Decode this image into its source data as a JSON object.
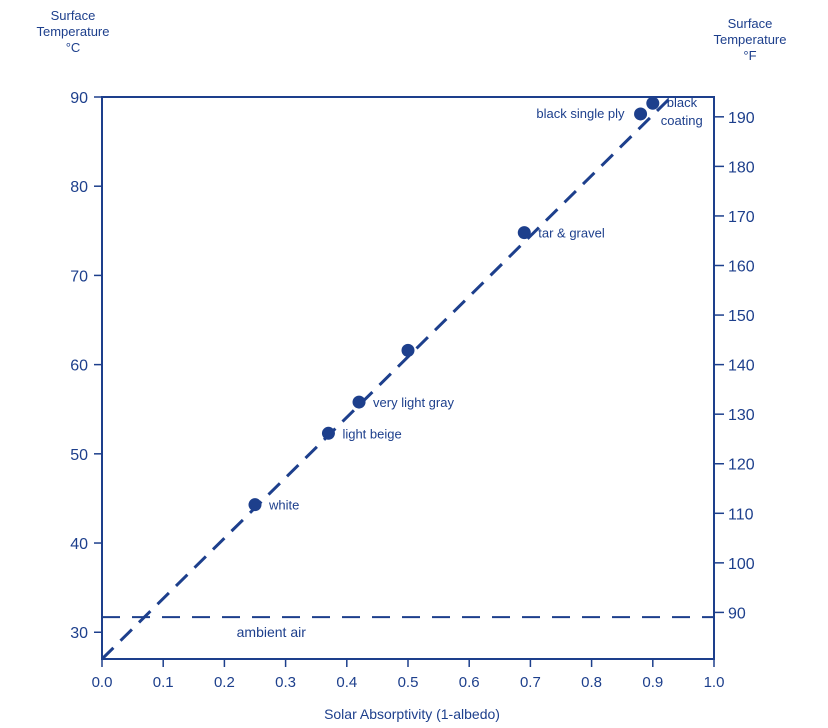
{
  "colors": {
    "ink": "#1d3f8c"
  },
  "left_axis_title": {
    "line1": "Surface",
    "line2": "Temperature",
    "line3": "°C"
  },
  "right_axis_title": {
    "line1": "Surface",
    "line2": "Temperature",
    "line3": "°F"
  },
  "chart_data": {
    "type": "scatter",
    "title": "",
    "xlabel": "Solar Absorptivity (1-albedo)",
    "ylabel": "Surface Temperature °C",
    "ylabel_right": "Surface Temperature °F",
    "xlim": [
      0.0,
      1.0
    ],
    "ylim": [
      27.0,
      90.0
    ],
    "ylim_right": [
      80.6,
      194.0
    ],
    "x_ticks": [
      "0.0",
      "0.1",
      "0.2",
      "0.3",
      "0.4",
      "0.5",
      "0.6",
      "0.7",
      "0.8",
      "0.9",
      "1.0"
    ],
    "y_ticks": [
      "30",
      "40",
      "50",
      "60",
      "70",
      "80",
      "90"
    ],
    "y_ticks_right": [
      "90",
      "100",
      "110",
      "120",
      "130",
      "140",
      "150",
      "160",
      "170",
      "180",
      "190"
    ],
    "grid": false,
    "series": [
      {
        "points": [
          {
            "x": 0.25,
            "y": 44.3,
            "label": "white"
          },
          {
            "x": 0.37,
            "y": 52.3,
            "label": "light beige"
          },
          {
            "x": 0.42,
            "y": 55.8,
            "label": "very light gray"
          },
          {
            "x": 0.5,
            "y": 61.6,
            "label": ""
          },
          {
            "x": 0.69,
            "y": 74.8,
            "label": "tar & gravel"
          },
          {
            "x": 0.88,
            "y": 88.1,
            "label": "black single ply"
          },
          {
            "x": 0.9,
            "y": 89.3,
            "label": "black coating"
          }
        ]
      }
    ],
    "trend_line": {
      "style": "dashed",
      "from": {
        "x": 0.0,
        "y": 27.0
      },
      "to": {
        "x": 0.93,
        "y": 90.0
      }
    },
    "reference_line": {
      "label": "ambient air",
      "y": 31.7,
      "style": "dashed"
    }
  }
}
